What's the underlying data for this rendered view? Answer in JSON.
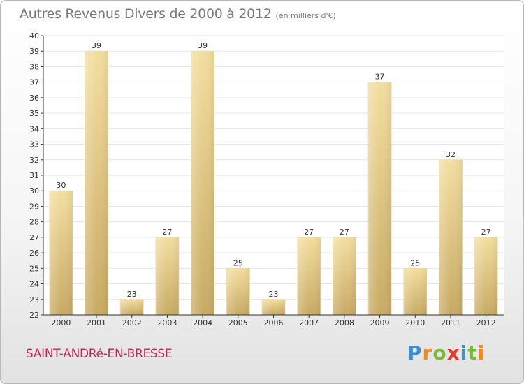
{
  "title": "Autres Revenus Divers de 2000 à 2012",
  "subtitle": "(en milliers d'€)",
  "place_name": "SAINT-ANDRé-EN-BRESSE",
  "logo": {
    "text": "Proxiti",
    "letters": [
      {
        "ch": "P",
        "color": "#3b8fd4"
      },
      {
        "ch": "r",
        "color": "#f08a1c"
      },
      {
        "ch": "o",
        "color": "#7ab83c"
      },
      {
        "ch": "x",
        "color": "#e53a2c"
      },
      {
        "ch": "i",
        "color": "#3b8fd4"
      },
      {
        "ch": "t",
        "color": "#7ab83c"
      },
      {
        "ch": "i",
        "color": "#f08a1c"
      }
    ]
  },
  "colors": {
    "bar_light": "#f3dea0",
    "bar_dark": "#c8aa64",
    "grid": "#e6e6e6",
    "axis": "#333333"
  },
  "chart_data": {
    "type": "bar",
    "categories": [
      "2000",
      "2001",
      "2002",
      "2003",
      "2004",
      "2005",
      "2006",
      "2007",
      "2008",
      "2009",
      "2010",
      "2011",
      "2012"
    ],
    "values": [
      30,
      39,
      23,
      27,
      39,
      25,
      23,
      27,
      27,
      37,
      25,
      32,
      27
    ],
    "title": "Autres Revenus Divers de 2000 à 2012",
    "subtitle": "(en milliers d'€)",
    "xlabel": "",
    "ylabel": "",
    "ylim": [
      22,
      40
    ],
    "yticks": [
      22,
      23,
      24,
      25,
      26,
      27,
      28,
      29,
      30,
      31,
      32,
      33,
      34,
      35,
      36,
      37,
      38,
      39,
      40
    ],
    "grid": true,
    "legend": "none"
  }
}
